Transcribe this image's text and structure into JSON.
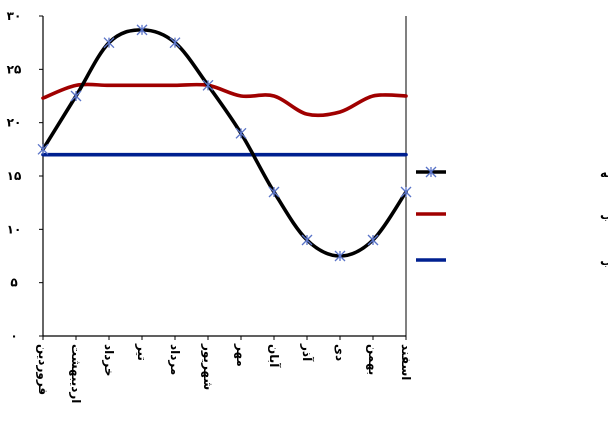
{
  "chart_data": {
    "type": "line",
    "categories": [
      "فروردین",
      "اردیبهشت",
      "خرداد",
      "تیر",
      "مرداد",
      "شهریور",
      "مهر",
      "آبان",
      "آذر",
      "دی",
      "بهمن",
      "اسفند"
    ],
    "series": [
      {
        "name": "متوسط حداقل دمای ماهانه",
        "color": "#000000",
        "marker": "asterisk-x",
        "values": [
          17.5,
          22.5,
          27.5,
          28.7,
          27.5,
          23.5,
          19.0,
          13.5,
          9.0,
          7.5,
          9.0,
          13.5
        ]
      },
      {
        "name": "حد بالای آسایش در شب",
        "color": "#a00000",
        "marker": "none",
        "values": [
          22.3,
          23.5,
          23.5,
          23.5,
          23.5,
          23.5,
          22.5,
          22.5,
          20.8,
          21.0,
          22.5,
          22.5
        ]
      },
      {
        "name": "حد پایین آسایش در شب",
        "color": "#002090",
        "marker": "none",
        "values": [
          17.0,
          17.0,
          17.0,
          17.0,
          17.0,
          17.0,
          17.0,
          17.0,
          17.0,
          17.0,
          17.0,
          17.0
        ]
      }
    ],
    "yticks": [
      "۰",
      "۵",
      "۱۰",
      "۱۵",
      "۲۰",
      "۲۵",
      "۳۰"
    ],
    "ylim": [
      0,
      30
    ],
    "legend_position": "right",
    "grid": false
  }
}
